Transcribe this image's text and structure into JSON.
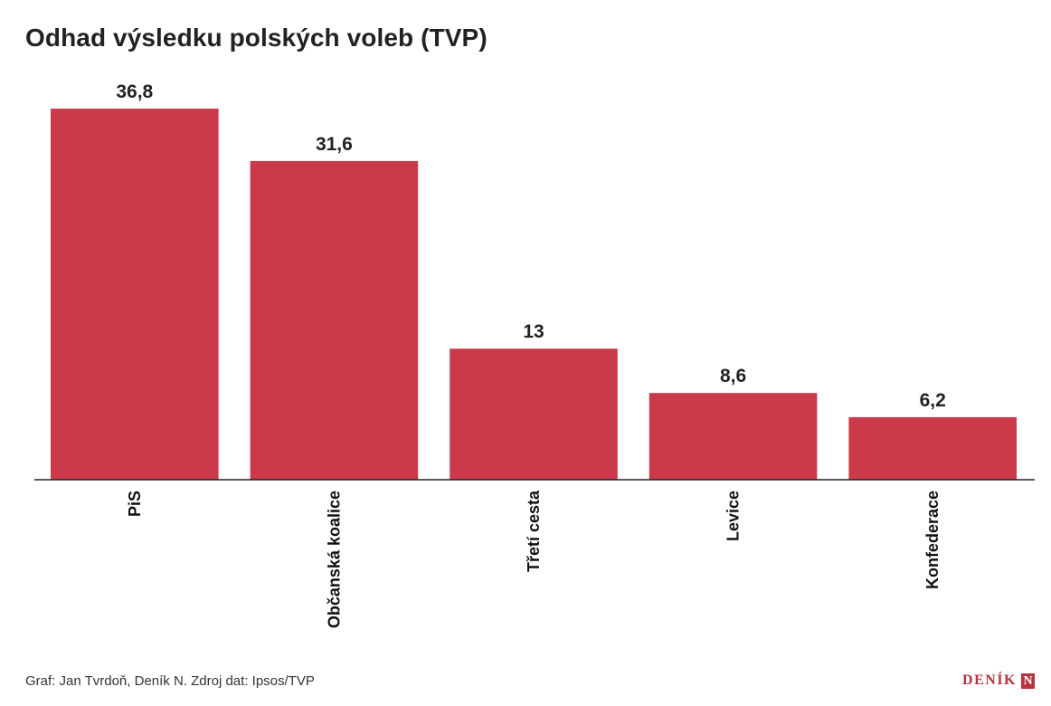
{
  "chart_data": {
    "type": "bar",
    "title": "Odhad výsledku polských voleb (TVP)",
    "categories": [
      "PiS",
      "Občanská koalice",
      "Třetí cesta",
      "Levice",
      "Konfederace"
    ],
    "values": [
      36.8,
      31.6,
      13,
      8.6,
      6.2
    ],
    "value_labels": [
      "36,8",
      "31,6",
      "13",
      "8,6",
      "6,2"
    ],
    "xlabel": "",
    "ylabel": "",
    "ylim": [
      0,
      36.8
    ],
    "grid": false,
    "bar_color": "#cb3a4b",
    "axis_color": "#222222"
  },
  "footer": {
    "source": "Graf: Jan Tvrdoň, Deník N. Zdroj dat: Ipsos/TVP",
    "logo_text": "DENÍK",
    "logo_letter": "N",
    "logo_color": "#b8313f"
  }
}
